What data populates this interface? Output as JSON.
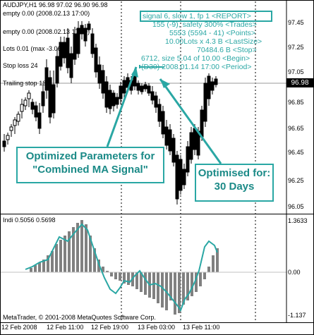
{
  "chart": {
    "title": "AUDJPY,H1  96.98 97.02 96.90 96.98",
    "empty_label1": "empty  0.00 (2008.02.13 17:00)",
    "empty_label2": "empty  0.00 (2008.02.13 17:00)",
    "lots_label": "Lots  0.01 (max -3.06)",
    "stop_loss_label": "Stop loss  24",
    "trailing_stop_label": "Trailing stop  18",
    "current_price": "96.98",
    "y_ticks": [
      "97.45",
      "97.25",
      "97.05",
      "96.85",
      "96.65",
      "96.45",
      "96.25",
      "96.05"
    ]
  },
  "report": {
    "line1": "signal 6, slow 1, fp 1 <REPORT>",
    "line2": "155 (-9), safety 300%   <Trades>",
    "line3": "5553 (5594 - 41)   <Points>",
    "line4": "10.00Lots x 4.3 B <LastSize>",
    "line5": "70484.6 B      <Stop>",
    "line6": "6712, size 5.04 of 10.00   <Begin>",
    "line7": "(D30) 2008.01.14 17:00   <Period>"
  },
  "callouts": {
    "optimized_params": "Optimized Parameters for \"Combined MA Signal\"",
    "optimised_for": "Optimised for: 30 Days"
  },
  "indicator": {
    "title": "Indi 0.5056 0.5698",
    "y_top": "1.3633",
    "y_mid": "0.00",
    "y_bottom": "-1.137",
    "copyright": "MetaTrader, © 2001-2008 MetaQuotes Software Corp."
  },
  "x_axis": [
    "12 Feb 2008",
    "12 Feb 11:00",
    "12 Feb 19:00",
    "13 Feb 03:00",
    "13 Feb 11:00"
  ],
  "colors": {
    "accent": "#2aa7a4",
    "bars": "#808080",
    "line": "#2aa7a4"
  }
}
